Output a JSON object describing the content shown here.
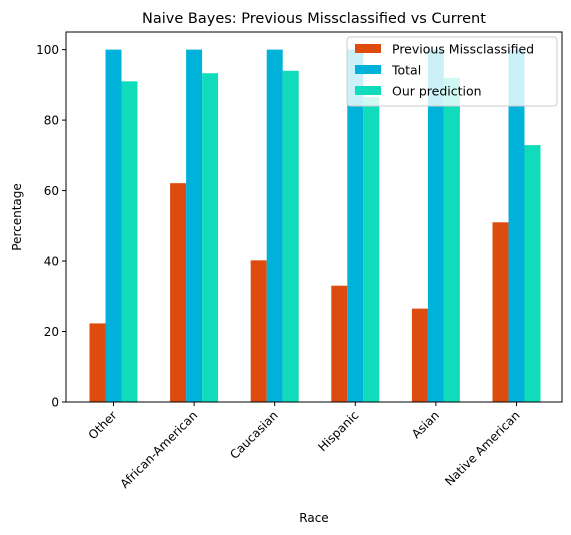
{
  "chart_data": {
    "type": "bar",
    "title": "Naive Bayes: Previous Missclassified vs Current",
    "xlabel": "Race",
    "ylabel": "Percentage",
    "ylim": [
      0,
      105
    ],
    "yticks": [
      0,
      20,
      40,
      60,
      80,
      100
    ],
    "categories": [
      "Other",
      "African-American",
      "Caucasian",
      "Hispanic",
      "Asian",
      "Native American"
    ],
    "series": [
      {
        "name": "Previous Missclassified",
        "color": "#dd4b0f",
        "values": [
          22.3,
          62.1,
          40.2,
          33.0,
          26.5,
          51.0
        ]
      },
      {
        "name": "Total",
        "color": "#00b2da",
        "values": [
          100,
          100,
          100,
          100,
          100,
          100
        ]
      },
      {
        "name": "Our prediction",
        "color": "#10dcbc",
        "values": [
          91.0,
          93.3,
          94.0,
          86.5,
          92.0,
          72.9
        ]
      }
    ],
    "legend_position": "top-right",
    "grid": false
  }
}
